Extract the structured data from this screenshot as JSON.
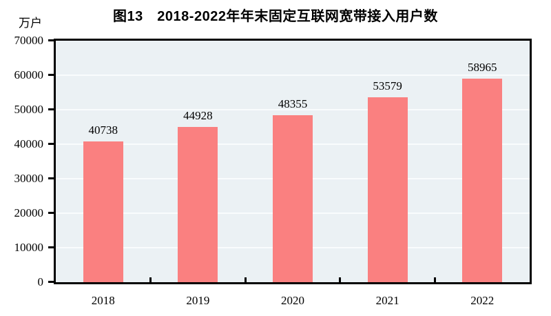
{
  "chart_data": {
    "type": "bar",
    "title": "图13　2018-2022年年末固定互联网宽带接入用户数",
    "unit_label": "万户",
    "categories": [
      "2018",
      "2019",
      "2020",
      "2021",
      "2022"
    ],
    "values": [
      40738,
      44928,
      48355,
      53579,
      58965
    ],
    "data_labels": [
      "40738",
      "44928",
      "48355",
      "53579",
      "58965"
    ],
    "xlabel": "",
    "ylabel": "万户",
    "ylim": [
      0,
      70000
    ],
    "ytick_interval": 10000,
    "yticks": [
      "0",
      "10000",
      "20000",
      "30000",
      "40000",
      "50000",
      "60000",
      "70000"
    ],
    "grid": "horizontal",
    "legend": "none",
    "colors": {
      "bar": "#FA8080",
      "plot_bg": "#EBF1F4",
      "gridline": "#F9FCFD",
      "axis": "#000000",
      "text": "#000000",
      "page_bg": "#FFFFFF"
    }
  }
}
